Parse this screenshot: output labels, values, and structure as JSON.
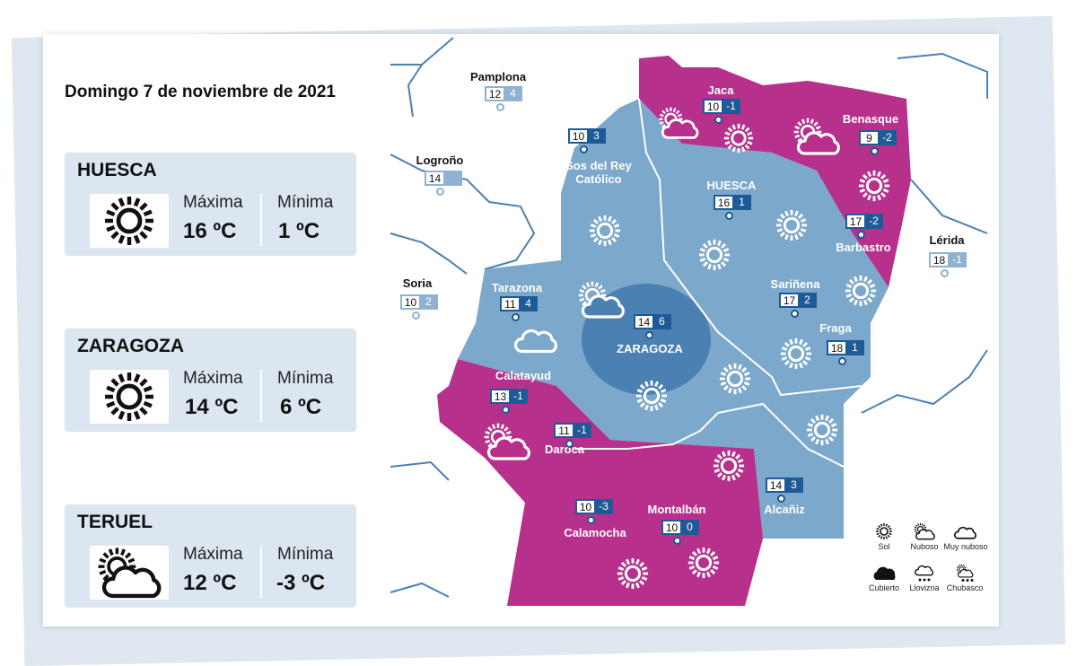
{
  "date_title": "Domingo 7 de noviembre de 2021",
  "colors": {
    "magenta": "#b7318c",
    "light_blue": "#7ca8cc",
    "dark_blue": "#4b80b3",
    "badge": "#1d5a96",
    "card": "#dce6f0"
  },
  "cards": [
    {
      "name": "HUESCA",
      "icon": "sun-icon",
      "max_label": "Máxima",
      "min_label": "Mínima",
      "max": "16 ºC",
      "min": "1 ºC"
    },
    {
      "name": "ZARAGOZA",
      "icon": "sun-icon",
      "max_label": "Máxima",
      "min_label": "Mínima",
      "max": "14 ºC",
      "min": "6 ºC"
    },
    {
      "name": "TERUEL",
      "icon": "sun-cloud-icon",
      "max_label": "Máxima",
      "min_label": "Mínima",
      "max": "12 ºC",
      "min": "-3 ºC"
    }
  ],
  "cities": {
    "pamplona": {
      "name": "Pamplona",
      "max": "12",
      "min": "4"
    },
    "logrono": {
      "name": "Logroño",
      "max": "14",
      "min": ""
    },
    "soria": {
      "name": "Soria",
      "max": "10",
      "min": "2"
    },
    "lerida": {
      "name": "Lérida",
      "max": "18",
      "min": "-1"
    },
    "jaca": {
      "name": "Jaca",
      "max": "10",
      "min": "-1"
    },
    "benasque": {
      "name": "Benasque",
      "max": "9",
      "min": "-2"
    },
    "sos": {
      "name": "Sos del Rey Católico",
      "max": "10",
      "min": "3"
    },
    "huesca": {
      "name": "HUESCA",
      "max": "16",
      "min": "1"
    },
    "barbastro": {
      "name": "Barbastro",
      "max": "17",
      "min": "-2"
    },
    "tarazona": {
      "name": "Tarazona",
      "max": "11",
      "min": "4"
    },
    "zaragoza": {
      "name": "ZARAGOZA",
      "max": "14",
      "min": "6"
    },
    "sarinena": {
      "name": "Sariñena",
      "max": "17",
      "min": "2"
    },
    "fraga": {
      "name": "Fraga",
      "max": "18",
      "min": "1"
    },
    "calatayud": {
      "name": "Calatayud",
      "max": "13",
      "min": "-1"
    },
    "daroca": {
      "name": "Daroca",
      "max": "11",
      "min": "-1"
    },
    "alcaniz": {
      "name": "Alcañiz",
      "max": "14",
      "min": "3"
    },
    "calamocha": {
      "name": "Calamocha",
      "max": "10",
      "min": "-3"
    },
    "montalban": {
      "name": "Montalbán",
      "max": "10",
      "min": "0"
    }
  },
  "legend": [
    {
      "label": "Sol",
      "icon": "sun-icon"
    },
    {
      "label": "Nuboso",
      "icon": "sun-cloud-icon"
    },
    {
      "label": "Muy nuboso",
      "icon": "cloud-icon"
    },
    {
      "label": "Cubierto",
      "icon": "overcast-icon"
    },
    {
      "label": "Llovizna",
      "icon": "drizzle-icon"
    },
    {
      "label": "Chubasco",
      "icon": "shower-icon"
    }
  ]
}
